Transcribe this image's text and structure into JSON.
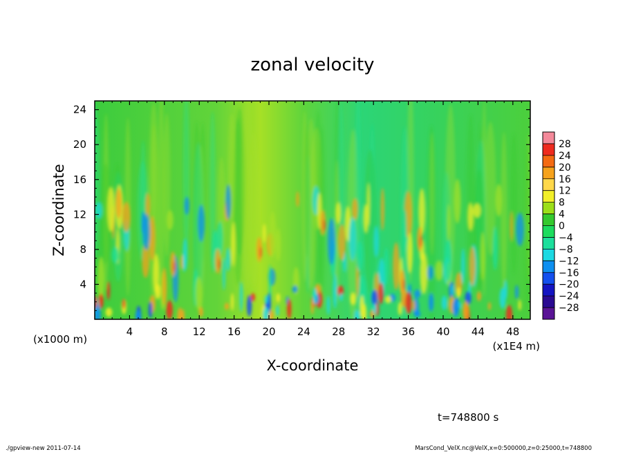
{
  "chart_data": {
    "type": "heatmap",
    "title": "zonal velocity",
    "xlabel": "X-coordinate",
    "ylabel": "Z-coordinate",
    "x_unit_left": "(x1000 m)",
    "x_unit_right": "(x1E4 m)",
    "xlim": [
      0,
      50
    ],
    "ylim": [
      0,
      25
    ],
    "xticks": [
      "4",
      "8",
      "12",
      "16",
      "20",
      "24",
      "28",
      "32",
      "36",
      "40",
      "44",
      "48"
    ],
    "yticks": [
      "4",
      "8",
      "12",
      "16",
      "20",
      "24"
    ],
    "colorbar_levels": [
      "28",
      "24",
      "20",
      "16",
      "12",
      "8",
      "4",
      "0",
      "−4",
      "−8",
      "−12",
      "−16",
      "−20",
      "−24",
      "−28"
    ],
    "colorbar_colors": [
      "#f4899a",
      "#ee2a1e",
      "#f46a12",
      "#f6a21c",
      "#ffd84a",
      "#f2ef28",
      "#9cdf18",
      "#34c92e",
      "#1cdc5e",
      "#1cdf9c",
      "#1cd9e2",
      "#0d8ff0",
      "#1450ee",
      "#1414c2",
      "#2a0a92",
      "#5a1496"
    ],
    "value_range": [
      -28,
      28
    ],
    "time_label": "t=748800 s"
  },
  "footer": {
    "left": "./gpview-new  2011-07-14",
    "right": "MarsCond_VelX.nc@VelX,x=0:500000,z=0:25000,t=748800"
  }
}
